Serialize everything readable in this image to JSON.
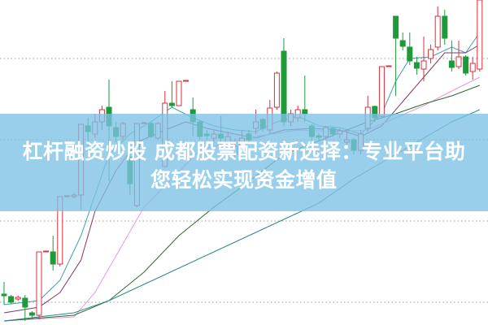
{
  "title": {
    "line1": "杠杆融资炒股 成都股票配资新选择：专业平台助",
    "line2": "您轻松实现资金增值"
  },
  "chart_data": {
    "type": "candlestick",
    "title": "",
    "xlabel": "",
    "ylabel": "",
    "ylim": [
      0,
      40
    ],
    "grid": true,
    "grid_levels": [
      32.8,
      22.8,
      12.8,
      2.8
    ],
    "colors": {
      "up": "#d9303a",
      "down": "#1f9a3a",
      "grid": "#999999",
      "banner": "#7cc2e6"
    },
    "candle_fields": [
      "index",
      "open",
      "close",
      "high",
      "low"
    ],
    "candles": [
      [
        0,
        3.8,
        3.6,
        5.3,
        2.5
      ],
      [
        1,
        3.5,
        2.8,
        3.7,
        2.6
      ],
      [
        2,
        3.2,
        3.4,
        3.6,
        3.0
      ],
      [
        3,
        3.3,
        2.2,
        3.7,
        0.5
      ],
      [
        4,
        1.5,
        1.2,
        1.7,
        0.8
      ],
      [
        5,
        1.2,
        9.0,
        9.0,
        0.7
      ],
      [
        6,
        9.0,
        9.1,
        9.1,
        9.0
      ],
      [
        7,
        9.0,
        7.5,
        11.0,
        6.7
      ],
      [
        8,
        7.5,
        15.8,
        15.8,
        7.2
      ],
      [
        9,
        15.8,
        15.9,
        15.9,
        15.8
      ],
      [
        10,
        15.8,
        16.0,
        16.2,
        15.6
      ],
      [
        11,
        16.0,
        24.7,
        24.7,
        14.2
      ],
      [
        12,
        24.5,
        23.8,
        25.5,
        22.0
      ],
      [
        13,
        23.5,
        25.0,
        26.0,
        23.0
      ],
      [
        14,
        25.0,
        26.5,
        27.0,
        24.0
      ],
      [
        15,
        26.8,
        24.5,
        30.2,
        17.7
      ],
      [
        16,
        24.3,
        23.2,
        25.0,
        22.5
      ],
      [
        17,
        23.2,
        24.8,
        25.0,
        22.8
      ],
      [
        18,
        20.7,
        17.4,
        21.5,
        16.0
      ],
      [
        19,
        14.7,
        24.8,
        24.8,
        14.5
      ],
      [
        20,
        24.8,
        24.9,
        24.9,
        24.8
      ],
      [
        21,
        24.8,
        23.2,
        25.0,
        23.0
      ],
      [
        22,
        23.0,
        24.8,
        25.0,
        22.8
      ],
      [
        23,
        19.5,
        27.3,
        28.8,
        19.5
      ],
      [
        24,
        27.3,
        27.0,
        30.0,
        26.8
      ],
      [
        25,
        27.0,
        30.0,
        30.0,
        27.0
      ],
      [
        26,
        30.0,
        30.1,
        30.1,
        30.0
      ],
      [
        27,
        26.5,
        25.0,
        28.0,
        23.2
      ],
      [
        28,
        25.0,
        23.2,
        25.2,
        22.8
      ],
      [
        29,
        23.5,
        23.3,
        24.0,
        22.8
      ],
      [
        30,
        23.0,
        23.5,
        24.0,
        22.5
      ],
      [
        31,
        23.5,
        23.0,
        25.7,
        22.5
      ],
      [
        32,
        22.5,
        23.2,
        23.8,
        22.0
      ],
      [
        33,
        21.0,
        22.0,
        23.0,
        20.5
      ],
      [
        34,
        22.0,
        23.0,
        24.0,
        21.5
      ],
      [
        35,
        23.5,
        22.8,
        24.0,
        22.3
      ],
      [
        36,
        24.2,
        25.0,
        26.5,
        23.5
      ],
      [
        37,
        25.3,
        24.2,
        25.5,
        23.8
      ],
      [
        38,
        24.0,
        26.7,
        27.7,
        23.5
      ],
      [
        39,
        26.8,
        31.0,
        31.2,
        26.5
      ],
      [
        40,
        33.7,
        25.0,
        35.3,
        24.5
      ],
      [
        41,
        25.0,
        26.0,
        26.5,
        24.5
      ],
      [
        42,
        25.5,
        26.5,
        27.0,
        25.0
      ],
      [
        43,
        26.5,
        26.0,
        30.7,
        25.0
      ],
      [
        44,
        24.5,
        23.2,
        24.7,
        22.5
      ],
      [
        45,
        23.3,
        23.1,
        23.6,
        22.8
      ],
      [
        46,
        23.2,
        24.3,
        24.5,
        22.8
      ],
      [
        47,
        24.2,
        23.5,
        24.4,
        23.2
      ],
      [
        48,
        23.5,
        23.9,
        24.2,
        23.0
      ],
      [
        49,
        22.5,
        22.8,
        24.0,
        22.2
      ],
      [
        50,
        22.8,
        21.5,
        23.0,
        21.0
      ],
      [
        51,
        21.5,
        23.5,
        24.0,
        21.0
      ],
      [
        52,
        24.2,
        26.8,
        28.2,
        23.8
      ],
      [
        53,
        26.9,
        25.5,
        27.0,
        25.0
      ],
      [
        54,
        25.7,
        31.8,
        31.8,
        25.5
      ],
      [
        55,
        31.8,
        31.9,
        31.9,
        31.8
      ],
      [
        56,
        38.0,
        35.3,
        38.0,
        28.2
      ],
      [
        57,
        35.0,
        34.3,
        36.0,
        33.8
      ],
      [
        58,
        34.2,
        32.5,
        36.0,
        32.0
      ],
      [
        59,
        32.3,
        31.6,
        33.0,
        30.8
      ],
      [
        60,
        31.5,
        32.5,
        35.5,
        30.0
      ],
      [
        61,
        32.8,
        33.9,
        34.5,
        32.2
      ],
      [
        62,
        34.2,
        38.0,
        39.2,
        33.8
      ],
      [
        63,
        38.0,
        35.3,
        38.8,
        34.5
      ],
      [
        64,
        32.5,
        31.7,
        35.0,
        31.2
      ],
      [
        65,
        31.8,
        33.0,
        35.0,
        31.5
      ],
      [
        66,
        33.0,
        31.0,
        33.2,
        30.7
      ],
      [
        67,
        31.2,
        32.2,
        33.0,
        30.2
      ],
      [
        68,
        31.5,
        40.0,
        40.0,
        31.2
      ]
    ],
    "moving_averages": [
      {
        "color": "#3f9fb5",
        "points": [
          [
            0,
            2.5
          ],
          [
            5,
            3
          ],
          [
            8,
            5.5
          ],
          [
            11,
            11
          ],
          [
            13,
            16
          ],
          [
            15,
            21
          ],
          [
            18,
            23.5
          ],
          [
            21,
            25
          ],
          [
            24,
            26.8
          ],
          [
            27,
            25.5
          ],
          [
            30,
            24.5
          ],
          [
            33,
            24
          ],
          [
            36,
            23.8
          ],
          [
            39,
            25
          ],
          [
            42,
            25.7
          ],
          [
            45,
            24.5
          ],
          [
            48,
            24.3
          ],
          [
            51,
            23.5
          ],
          [
            54,
            26
          ],
          [
            56,
            30
          ],
          [
            58,
            32.8
          ],
          [
            61,
            33
          ],
          [
            64,
            34.2
          ],
          [
            66,
            33.5
          ],
          [
            68,
            36
          ]
        ]
      },
      {
        "color": "#7a3a6e",
        "points": [
          [
            0,
            1.5
          ],
          [
            5,
            2.2
          ],
          [
            8,
            4
          ],
          [
            11,
            8
          ],
          [
            13,
            14
          ],
          [
            16,
            19
          ],
          [
            19,
            22.5
          ],
          [
            23,
            24
          ],
          [
            26,
            25
          ],
          [
            29,
            24.2
          ],
          [
            33,
            23.5
          ],
          [
            36,
            23
          ],
          [
            40,
            24
          ],
          [
            44,
            24.2
          ],
          [
            48,
            24
          ],
          [
            51,
            23.2
          ],
          [
            54,
            24.5
          ],
          [
            57,
            27.5
          ],
          [
            60,
            30.5
          ],
          [
            63,
            33.5
          ],
          [
            66,
            33.5
          ],
          [
            68,
            34.5
          ]
        ]
      },
      {
        "color": "#e59ad8",
        "points": [
          [
            0,
            0.5
          ],
          [
            10,
            1
          ],
          [
            13,
            4
          ],
          [
            17,
            10
          ],
          [
            20,
            14.5
          ],
          [
            24,
            18
          ],
          [
            28,
            21.5
          ],
          [
            32,
            22.5
          ],
          [
            36,
            23.2
          ],
          [
            42,
            24
          ],
          [
            48,
            23.8
          ],
          [
            52,
            24
          ],
          [
            56,
            25.5
          ],
          [
            60,
            27
          ],
          [
            64,
            28.8
          ],
          [
            68,
            30.5
          ]
        ]
      },
      {
        "color": "#2e6b2e",
        "points": [
          [
            0,
            0.5
          ],
          [
            10,
            1.2
          ],
          [
            15,
            3
          ],
          [
            20,
            6.5
          ],
          [
            25,
            11
          ],
          [
            30,
            14.5
          ],
          [
            34,
            17
          ],
          [
            40,
            21
          ],
          [
            46,
            23
          ],
          [
            52,
            25
          ],
          [
            56,
            26
          ],
          [
            60,
            27.2
          ],
          [
            64,
            28.2
          ],
          [
            68,
            29.5
          ]
        ]
      },
      {
        "color": "#2a8a8a",
        "points": [
          [
            0,
            0.5
          ],
          [
            10,
            1.5
          ],
          [
            15,
            3
          ],
          [
            20,
            5
          ],
          [
            25,
            7
          ],
          [
            30,
            9
          ],
          [
            35,
            11
          ],
          [
            40,
            13
          ],
          [
            45,
            15
          ],
          [
            50,
            18
          ],
          [
            55,
            20.5
          ],
          [
            60,
            23
          ],
          [
            64,
            25
          ],
          [
            68,
            26.5
          ]
        ]
      }
    ]
  }
}
